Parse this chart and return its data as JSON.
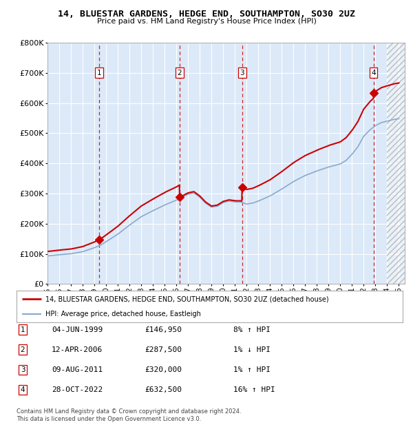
{
  "title": "14, BLUESTAR GARDENS, HEDGE END, SOUTHAMPTON, SO30 2UZ",
  "subtitle": "Price paid vs. HM Land Registry's House Price Index (HPI)",
  "ylim": [
    0,
    800000
  ],
  "yticks": [
    0,
    100000,
    200000,
    300000,
    400000,
    500000,
    600000,
    700000,
    800000
  ],
  "ytick_labels": [
    "£0",
    "£100K",
    "£200K",
    "£300K",
    "£400K",
    "£500K",
    "£600K",
    "£700K",
    "£800K"
  ],
  "xlim_start": 1995.0,
  "xlim_end": 2025.5,
  "plot_bg": "#dce9f8",
  "grid_color": "#ffffff",
  "red_line_color": "#cc0000",
  "blue_line_color": "#88aacc",
  "sale_dates": [
    1999.43,
    2006.28,
    2011.61,
    2022.83
  ],
  "sale_prices": [
    146950,
    287500,
    320000,
    632500
  ],
  "sale_labels": [
    "1",
    "2",
    "3",
    "4"
  ],
  "dashed_line_color": "#cc0000",
  "marker_color": "#cc0000",
  "legend_label_red": "14, BLUESTAR GARDENS, HEDGE END, SOUTHAMPTON, SO30 2UZ (detached house)",
  "legend_label_blue": "HPI: Average price, detached house, Eastleigh",
  "table_entries": [
    {
      "num": "1",
      "date": "04-JUN-1999",
      "price": "£146,950",
      "hpi": "8% ↑ HPI"
    },
    {
      "num": "2",
      "date": "12-APR-2006",
      "price": "£287,500",
      "hpi": "1% ↓ HPI"
    },
    {
      "num": "3",
      "date": "09-AUG-2011",
      "price": "£320,000",
      "hpi": "1% ↑ HPI"
    },
    {
      "num": "4",
      "date": "28-OCT-2022",
      "price": "£632,500",
      "hpi": "16% ↑ HPI"
    }
  ],
  "footer": "Contains HM Land Registry data © Crown copyright and database right 2024.\nThis data is licensed under the Open Government Licence v3.0.",
  "hatch_start": 2024.0
}
